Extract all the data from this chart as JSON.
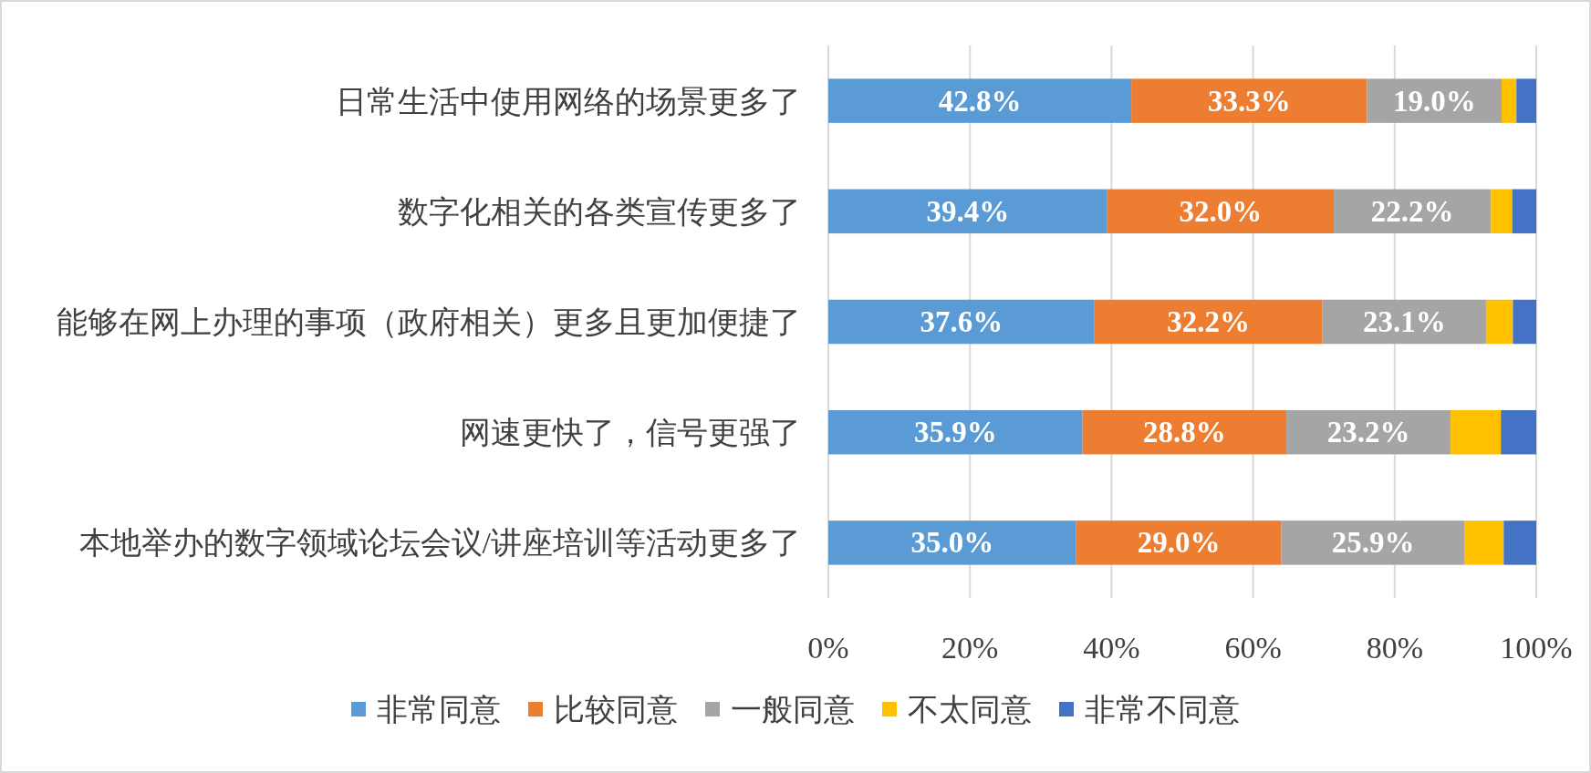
{
  "chart_data": {
    "type": "bar",
    "orientation": "horizontal",
    "stacked": true,
    "categories": [
      "日常生活中使用网络的场景更多了",
      "数字化相关的各类宣传更多了",
      "能够在网上办理的事项（政府相关）更多且更加便捷了",
      "网速更快了，信号更强了",
      "本地举办的数字领域论坛会议/讲座培训等活动更多了"
    ],
    "series": [
      {
        "name": "非常同意",
        "color": "#5b9bd5",
        "values": [
          42.8,
          39.4,
          37.6,
          35.9,
          35.0
        ],
        "value_labels": [
          "42.8%",
          "39.4%",
          "37.6%",
          "35.9%",
          "35.0%"
        ]
      },
      {
        "name": "比较同意",
        "color": "#ed7d31",
        "values": [
          33.3,
          32.0,
          32.2,
          28.8,
          29.0
        ],
        "value_labels": [
          "33.3%",
          "32.0%",
          "32.2%",
          "28.8%",
          "29.0%"
        ]
      },
      {
        "name": "一般同意",
        "color": "#a5a5a5",
        "values": [
          19.0,
          22.2,
          23.1,
          23.2,
          25.9
        ],
        "value_labels": [
          "19.0%",
          "22.2%",
          "23.1%",
          "23.2%",
          "25.9%"
        ]
      },
      {
        "name": "不太同意",
        "color": "#ffc000",
        "values": [
          2.1,
          3.0,
          3.8,
          7.1,
          5.5
        ]
      },
      {
        "name": "非常不同意",
        "color": "#4472c4",
        "values": [
          2.8,
          3.4,
          3.3,
          5.0,
          4.6
        ]
      }
    ],
    "xlim": [
      0,
      100
    ],
    "xticks": [
      {
        "value": 0,
        "label": "0%"
      },
      {
        "value": 20,
        "label": "20%"
      },
      {
        "value": 40,
        "label": "40%"
      },
      {
        "value": 60,
        "label": "60%"
      },
      {
        "value": 80,
        "label": "80%"
      },
      {
        "value": 100,
        "label": "100%"
      }
    ],
    "grid": "x",
    "legend": "bottom"
  }
}
